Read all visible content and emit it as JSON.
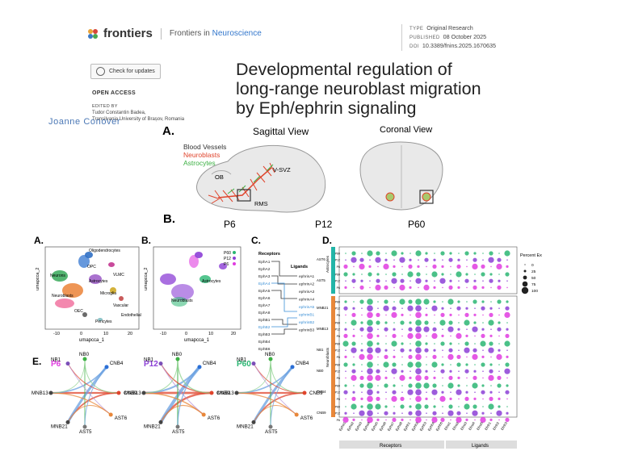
{
  "header": {
    "brand": "frontiers",
    "journal_prefix": "Frontiers in",
    "journal_name": "Neuroscience",
    "meta": [
      {
        "key": "TYPE",
        "value": "Original Research"
      },
      {
        "key": "PUBLISHED",
        "value": "08 October 2025"
      },
      {
        "key": "DOI",
        "value": "10.3389/fnins.2025.1670635"
      }
    ],
    "check_updates_label": "Check for updates",
    "open_access": "OPEN ACCESS",
    "edited_by_label": "EDITED BY",
    "editor_name": "Tudor Constantin Badea,",
    "editor_affiliation": "Transilvania University of Brașov, Romania",
    "ghost_text": "Joanne Conover"
  },
  "article": {
    "title_lines": [
      "Developmental regulation of",
      "long-range neuroblast migration",
      "by Eph/ephrin signaling"
    ]
  },
  "figure": {
    "panel_A_top": "A.",
    "panel_B_top": "B.",
    "sagittal_view": "Sagittal View",
    "coronal_view": "Coronal View",
    "legend_blood_vessels": "Blood Vessels",
    "legend_neuroblasts": "Neuroblasts",
    "legend_astrocytes": "Astrocytes",
    "label_ob": "OB",
    "label_vsvz": "V-SVZ",
    "label_rms": "RMS",
    "ages": [
      "P6",
      "P12",
      "P60"
    ],
    "colors": {
      "neuroblast_red": "#e0442c",
      "astro_green": "#3cb043",
      "p60_green": "#2bb673",
      "p12_purple": "#8c3fd6",
      "p6_pink": "#e03ce0",
      "teal": "#22b5a8",
      "orange": "#e8873a"
    },
    "panel_A": {
      "letter": "A.",
      "axis_y": "umapcca_2",
      "axis_x": "umapcca_1",
      "xticks": [
        "-10",
        "0",
        "10",
        "20"
      ],
      "clusters": [
        "Oligodendrocytes",
        "OPC",
        "Neurons",
        "Astrocytes",
        "VLMC",
        "Microglia",
        "Vascular",
        "Neuroblasts",
        "OEC",
        "Endothelial",
        "Pericytes"
      ]
    },
    "panel_B": {
      "letter": "B.",
      "axis_y": "umapcca_2",
      "axis_x": "umapcca_1",
      "xticks": [
        "-10",
        "0",
        "10",
        "20"
      ],
      "legend": [
        "P60",
        "P12",
        "P6"
      ],
      "clusters": [
        "Astrocytes",
        "Neuroblasts"
      ]
    },
    "panel_C": {
      "letter": "C.",
      "receptors_label": "Receptors",
      "ligands_label": "Ligands",
      "receptors": [
        "EphA1",
        "EphA2",
        "EphA3",
        "EphA4",
        "EphA5",
        "EphA6",
        "EphA7",
        "EphA8",
        "EphB1",
        "EphB2",
        "EphB3",
        "EphB4",
        "EphB6"
      ],
      "ligands": [
        "ephrinA1",
        "ephrinA2",
        "ephrinA3",
        "ephrinA4",
        "ephrinA5",
        "ephrinB1",
        "ephrinB2",
        "ephrinB3"
      ]
    },
    "panel_D": {
      "letter": "D.",
      "legend_title": "Percent Ex",
      "legend_values": [
        "0",
        "25",
        "50",
        "75",
        "100"
      ],
      "groups": [
        {
          "name": "Astrocytes",
          "clusters": [
            "AST6",
            "AST5"
          ]
        },
        {
          "name": "Neuroblasts",
          "clusters": [
            "MNB21",
            "MNB13",
            "NB1",
            "NB0",
            "CNB4",
            "CNB9"
          ]
        }
      ],
      "timepoints": [
        "P60",
        "P12",
        "P6"
      ],
      "genes": [
        "Epha1",
        "Epha2",
        "Epha3",
        "Epha4",
        "Epha5",
        "Epha6",
        "Epha7",
        "Epha8",
        "Ephb1",
        "Ephb2",
        "Ephb3",
        "Ephb4",
        "Ephb6",
        "Efna1",
        "Efna2",
        "Efna3",
        "Efna4",
        "Efna5",
        "Efnb1",
        "Efnb2",
        "Efnb3"
      ],
      "receptors_label": "Receptors",
      "ligands_label": "Ligands"
    },
    "panel_E": {
      "letter": "E.",
      "networks": [
        {
          "age": "P6",
          "nodes": [
            "NB1",
            "NB0",
            "CNB4",
            "MNB13",
            "CNB9",
            "MNB21",
            "AST5",
            "AST6"
          ]
        },
        {
          "age": "P12",
          "nodes": [
            "NB1",
            "NB0",
            "CNB4",
            "MNB13",
            "CNB9",
            "MNB21",
            "AST5",
            "AST6"
          ]
        },
        {
          "age": "P60",
          "nodes": [
            "NB1",
            "NB0",
            "CNB4",
            "MNB13",
            "CNB9",
            "MNB21",
            "AST5",
            "AST6"
          ]
        }
      ]
    }
  }
}
